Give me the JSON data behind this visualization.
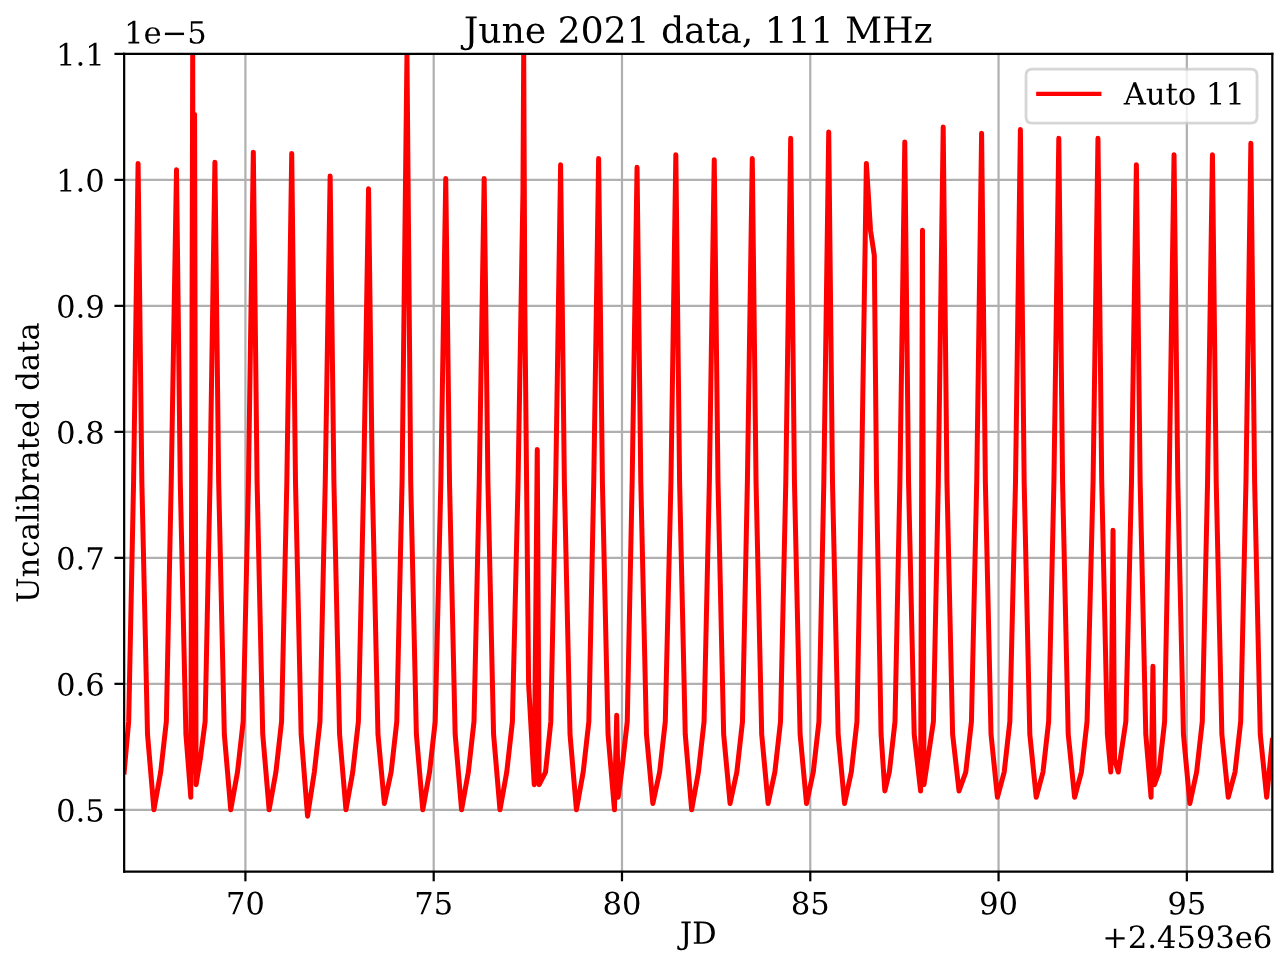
{
  "chart_data": {
    "type": "line",
    "title": "June 2021 data, 111 MHz",
    "xlabel": "JD",
    "ylabel": "Uncalibrated data",
    "annotations": [
      "1e−5",
      "+2.4593e6"
    ],
    "xlim": [
      66.78,
      97.27
    ],
    "xticks": [
      70,
      75,
      80,
      85,
      90,
      95
    ],
    "ylim": [
      0.451,
      1.1
    ],
    "yticks": [
      0.5,
      0.6,
      0.7,
      0.8,
      0.9,
      {
        "value": 1,
        "label": "1.0"
      },
      1.1
    ],
    "grid": true,
    "legend": "top right",
    "marker": "none",
    "line_style": "solid",
    "series": [
      {
        "name": "Auto 11",
        "color": "#ff0000",
        "x": [
          66.78,
          66.9,
          67.03,
          67.15,
          67.25,
          67.4,
          67.57,
          67.75,
          67.9,
          68.03,
          68.17,
          68.27,
          68.42,
          68.55,
          68.6,
          68.63,
          68.65,
          68.69,
          68.8,
          68.93,
          69.06,
          69.19,
          69.29,
          69.44,
          69.61,
          69.79,
          69.94,
          70.08,
          70.21,
          70.31,
          70.46,
          70.63,
          70.81,
          70.96,
          71.1,
          71.23,
          71.33,
          71.48,
          71.65,
          71.83,
          71.98,
          72.12,
          72.25,
          72.35,
          72.5,
          72.67,
          72.85,
          73.0,
          73.14,
          73.27,
          73.37,
          73.52,
          73.69,
          73.87,
          74.02,
          74.16,
          74.29,
          74.39,
          74.54,
          74.71,
          74.89,
          75.04,
          75.19,
          75.32,
          75.42,
          75.57,
          75.74,
          75.92,
          76.07,
          76.21,
          76.34,
          76.44,
          76.59,
          76.76,
          76.94,
          77.09,
          77.24,
          77.37,
          77.39,
          77.42,
          77.52,
          77.67,
          77.75,
          77.8,
          77.97,
          78.11,
          78.24,
          78.37,
          78.47,
          78.62,
          78.79,
          78.97,
          79.12,
          79.25,
          79.38,
          79.48,
          79.63,
          79.8,
          79.86,
          79.9,
          79.99,
          80.14,
          80.27,
          80.4,
          80.5,
          80.65,
          80.82,
          81.0,
          81.15,
          81.3,
          81.43,
          81.53,
          81.68,
          81.85,
          82.03,
          82.18,
          82.32,
          82.45,
          82.55,
          82.7,
          82.87,
          83.05,
          83.2,
          83.33,
          83.46,
          83.56,
          83.71,
          83.88,
          84.06,
          84.21,
          84.35,
          84.48,
          84.58,
          84.73,
          84.9,
          85.08,
          85.23,
          85.36,
          85.49,
          85.59,
          85.74,
          85.91,
          86.09,
          86.24,
          86.36,
          86.49,
          86.6,
          86.7,
          86.76,
          86.88,
          86.98,
          87.1,
          87.25,
          87.38,
          87.51,
          87.61,
          87.76,
          87.93,
          87.98,
          88.02,
          88.12,
          88.27,
          88.4,
          88.53,
          88.63,
          88.78,
          88.95,
          89.13,
          89.28,
          89.42,
          89.55,
          89.65,
          89.8,
          89.97,
          90.15,
          90.3,
          90.45,
          90.58,
          90.68,
          90.83,
          91.0,
          91.18,
          91.33,
          91.47,
          91.6,
          91.7,
          91.85,
          92.02,
          92.2,
          92.35,
          92.51,
          92.64,
          92.74,
          92.89,
          92.98,
          93.04,
          93.08,
          93.18,
          93.38,
          93.53,
          93.66,
          93.76,
          93.91,
          94.05,
          94.1,
          94.14,
          94.26,
          94.41,
          94.53,
          94.66,
          94.76,
          94.91,
          95.08,
          95.26,
          95.41,
          95.55,
          95.68,
          95.78,
          95.93,
          96.1,
          96.28,
          96.43,
          96.57,
          96.7,
          96.8,
          96.95,
          97.12,
          97.27
        ],
        "values": [
          0.53,
          0.57,
          0.76,
          1.013,
          0.76,
          0.56,
          0.5,
          0.53,
          0.57,
          0.76,
          1.008,
          0.76,
          0.56,
          0.51,
          1.1,
          0.53,
          1.052,
          0.52,
          0.54,
          0.57,
          0.76,
          1.014,
          0.76,
          0.56,
          0.5,
          0.53,
          0.57,
          0.76,
          1.022,
          0.76,
          0.56,
          0.5,
          0.53,
          0.57,
          0.76,
          1.021,
          0.76,
          0.56,
          0.495,
          0.53,
          0.57,
          0.76,
          1.003,
          0.76,
          0.56,
          0.5,
          0.53,
          0.57,
          0.76,
          0.993,
          0.76,
          0.56,
          0.505,
          0.53,
          0.57,
          0.76,
          1.1,
          0.76,
          0.56,
          0.5,
          0.53,
          0.57,
          0.76,
          1.001,
          0.76,
          0.56,
          0.5,
          0.53,
          0.57,
          0.76,
          1.001,
          0.76,
          0.56,
          0.5,
          0.53,
          0.57,
          0.76,
          0.99,
          1.1,
          0.9,
          0.6,
          0.52,
          0.786,
          0.52,
          0.53,
          0.57,
          0.76,
          1.012,
          0.76,
          0.56,
          0.5,
          0.53,
          0.57,
          0.76,
          1.017,
          0.76,
          0.56,
          0.5,
          0.575,
          0.51,
          0.53,
          0.57,
          0.76,
          1.01,
          0.76,
          0.56,
          0.505,
          0.53,
          0.57,
          0.76,
          1.02,
          0.76,
          0.56,
          0.5,
          0.53,
          0.57,
          0.76,
          1.016,
          0.76,
          0.56,
          0.505,
          0.53,
          0.57,
          0.76,
          1.017,
          0.76,
          0.56,
          0.505,
          0.53,
          0.57,
          0.76,
          1.033,
          0.76,
          0.56,
          0.505,
          0.53,
          0.57,
          0.76,
          1.038,
          0.76,
          0.56,
          0.505,
          0.53,
          0.57,
          0.76,
          1.013,
          0.96,
          0.94,
          0.76,
          0.56,
          0.515,
          0.53,
          0.57,
          0.76,
          1.03,
          0.76,
          0.56,
          0.515,
          0.96,
          0.52,
          0.54,
          0.57,
          0.76,
          1.042,
          0.76,
          0.56,
          0.515,
          0.53,
          0.57,
          0.76,
          1.037,
          0.76,
          0.56,
          0.51,
          0.53,
          0.57,
          0.76,
          1.04,
          0.76,
          0.56,
          0.51,
          0.53,
          0.57,
          0.76,
          1.033,
          0.76,
          0.56,
          0.51,
          0.53,
          0.57,
          0.76,
          1.033,
          0.76,
          0.56,
          0.53,
          0.722,
          0.54,
          0.53,
          0.57,
          0.76,
          1.012,
          0.76,
          0.56,
          0.51,
          0.614,
          0.52,
          0.53,
          0.57,
          0.76,
          1.02,
          0.76,
          0.56,
          0.505,
          0.53,
          0.57,
          0.76,
          1.02,
          0.76,
          0.56,
          0.51,
          0.53,
          0.57,
          0.76,
          1.029,
          0.76,
          0.56,
          0.51,
          0.555
        ]
      }
    ]
  }
}
